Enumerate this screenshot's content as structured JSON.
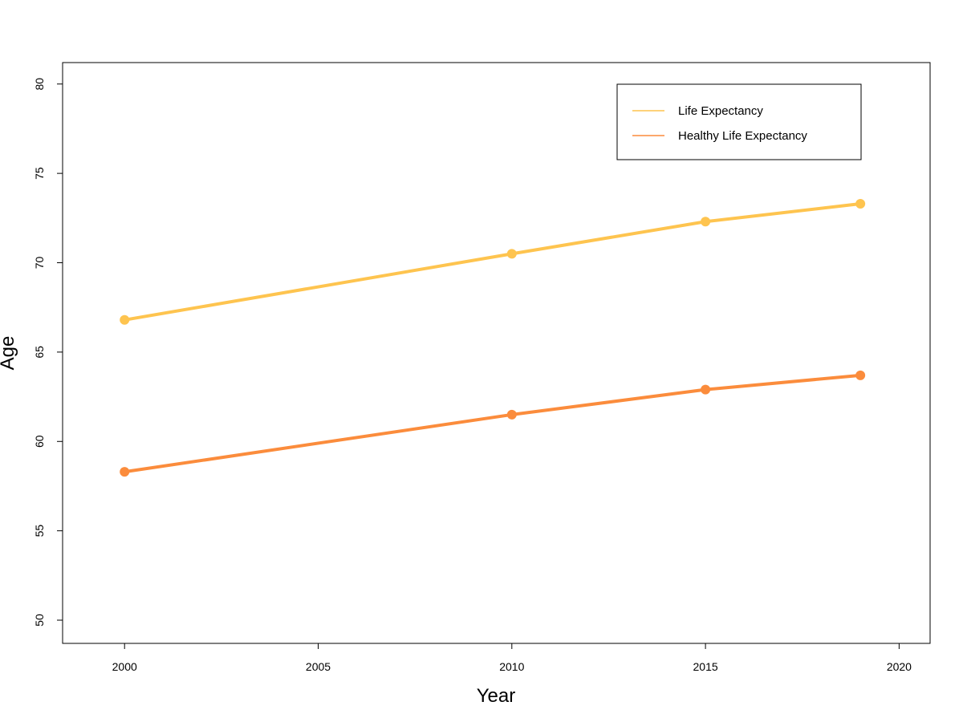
{
  "chart_data": {
    "type": "line",
    "title": "",
    "xlabel": "Year",
    "ylabel": "Age",
    "xlim": [
      1998.4,
      2020.8
    ],
    "ylim": [
      48.7,
      81.2
    ],
    "xticks": [
      "2000",
      "2005",
      "2010",
      "2015",
      "2020"
    ],
    "yticks": [
      "50",
      "55",
      "60",
      "65",
      "70",
      "75",
      "80"
    ],
    "grid": false,
    "legend_position": "top-right",
    "x": [
      2000,
      2010,
      2015,
      2019
    ],
    "series": [
      {
        "name": "Life Expectancy",
        "color": "#fec44f",
        "values": [
          66.8,
          70.5,
          72.3,
          73.3
        ]
      },
      {
        "name": "Healthy Life Expectancy",
        "color": "#fb8c3c",
        "values": [
          58.3,
          61.5,
          62.9,
          63.7
        ]
      }
    ]
  }
}
